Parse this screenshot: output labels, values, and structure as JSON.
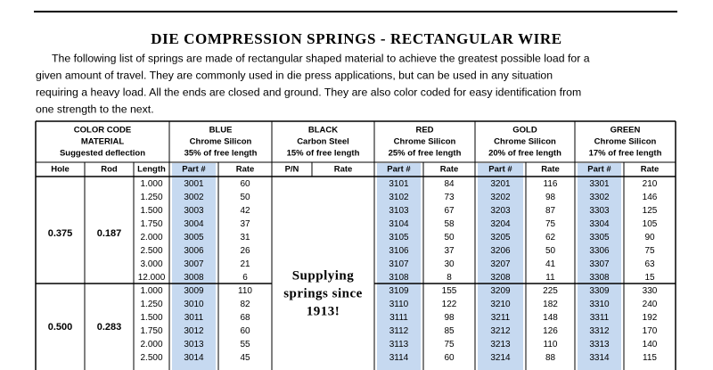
{
  "header": {
    "title": "DIE COMPRESSION SPRINGS - RECTANGULAR WIRE",
    "intro": [
      "The following list of springs are made of rectangular shaped material to achieve the greatest possible load for a",
      "given amount of travel. They are commonly used in die press applications, but can be used in any situation",
      "requiring a heavy load. All the ends are closed and ground. They are also color coded for easy identification from",
      "one strength to the next."
    ]
  },
  "table": {
    "color_code_header": [
      "COLOR CODE",
      "MATERIAL",
      "Suggested deflection"
    ],
    "sub_headers": [
      "Hole",
      "Rod",
      "Length"
    ],
    "groups": [
      {
        "name": "BLUE",
        "material": "Chrome Silicon",
        "deflection": "35% of free length",
        "col1": "Part #",
        "col2": "Rate"
      },
      {
        "name": "BLACK",
        "material": "Carbon Steel",
        "deflection": "15% of free length",
        "col1": "P/N",
        "col2": "Rate"
      },
      {
        "name": "RED",
        "material": "Chrome Silicon",
        "deflection": "25% of free length",
        "col1": "Part #",
        "col2": "Rate"
      },
      {
        "name": "GOLD",
        "material": "Chrome Silicon",
        "deflection": "20% of free length",
        "col1": "Part #",
        "col2": "Rate"
      },
      {
        "name": "GREEN",
        "material": "Chrome Silicon",
        "deflection": "17% of free length",
        "col1": "Part #",
        "col2": "Rate"
      }
    ],
    "sections": [
      {
        "hole": "0.375",
        "rod": "0.187",
        "rows": [
          [
            "1.000",
            "3001",
            "60",
            "3101",
            "84",
            "3201",
            "116",
            "3301",
            "210"
          ],
          [
            "1.250",
            "3002",
            "50",
            "3102",
            "73",
            "3202",
            "98",
            "3302",
            "146"
          ],
          [
            "1.500",
            "3003",
            "42",
            "3103",
            "67",
            "3203",
            "87",
            "3303",
            "125"
          ],
          [
            "1.750",
            "3004",
            "37",
            "3104",
            "58",
            "3204",
            "75",
            "3304",
            "105"
          ],
          [
            "2.000",
            "3005",
            "31",
            "3105",
            "50",
            "3205",
            "62",
            "3305",
            "90"
          ],
          [
            "2.500",
            "3006",
            "26",
            "3106",
            "37",
            "3206",
            "50",
            "3306",
            "75"
          ],
          [
            "3.000",
            "3007",
            "21",
            "3107",
            "30",
            "3207",
            "41",
            "3307",
            "63"
          ],
          [
            "12.000",
            "3008",
            "6",
            "3108",
            "8",
            "3208",
            "11",
            "3308",
            "15"
          ]
        ]
      },
      {
        "hole": "0.500",
        "rod": "0.283",
        "rows": [
          [
            "1.000",
            "3009",
            "110",
            "3109",
            "155",
            "3209",
            "225",
            "3309",
            "330"
          ],
          [
            "1.250",
            "3010",
            "82",
            "3110",
            "122",
            "3210",
            "182",
            "3310",
            "240"
          ],
          [
            "1.500",
            "3011",
            "68",
            "3111",
            "98",
            "3211",
            "148",
            "3311",
            "192"
          ],
          [
            "1.750",
            "3012",
            "60",
            "3112",
            "85",
            "3212",
            "126",
            "3312",
            "170"
          ],
          [
            "2.000",
            "3013",
            "55",
            "3113",
            "75",
            "3213",
            "110",
            "3313",
            "140"
          ],
          [
            "2.500",
            "3014",
            "45",
            "3114",
            "60",
            "3214",
            "88",
            "3314",
            "115"
          ]
        ]
      }
    ],
    "note": [
      "Supplying",
      "springs since",
      "1913!"
    ]
  }
}
